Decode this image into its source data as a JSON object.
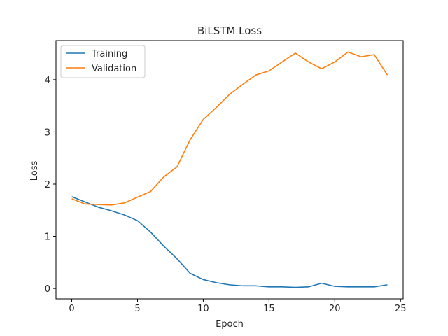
{
  "chart_data": {
    "type": "line",
    "title": "BiLSTM Loss",
    "xlabel": "Epoch",
    "ylabel": "Loss",
    "xlim": [
      -1.2,
      25.2
    ],
    "ylim": [
      -0.2,
      4.75
    ],
    "xticks": [
      0,
      5,
      10,
      15,
      20,
      25
    ],
    "yticks": [
      0,
      1,
      2,
      3,
      4
    ],
    "legend_position": "top-left",
    "x": [
      0,
      1,
      2,
      3,
      4,
      5,
      6,
      7,
      8,
      9,
      10,
      11,
      12,
      13,
      14,
      15,
      16,
      17,
      18,
      19,
      20,
      21,
      22,
      23,
      24
    ],
    "series": [
      {
        "name": "Training",
        "color": "#1f77b4",
        "values": [
          1.76,
          1.66,
          1.56,
          1.49,
          1.41,
          1.3,
          1.08,
          0.81,
          0.57,
          0.29,
          0.17,
          0.11,
          0.07,
          0.05,
          0.05,
          0.03,
          0.03,
          0.02,
          0.03,
          0.1,
          0.04,
          0.03,
          0.03,
          0.03,
          0.07
        ]
      },
      {
        "name": "Validation",
        "color": "#ff7f0e",
        "values": [
          1.72,
          1.62,
          1.61,
          1.6,
          1.64,
          1.75,
          1.86,
          2.14,
          2.33,
          2.85,
          3.24,
          3.47,
          3.72,
          3.91,
          4.09,
          4.17,
          4.34,
          4.51,
          4.34,
          4.21,
          4.34,
          4.53,
          4.44,
          4.48,
          4.09
        ]
      }
    ]
  }
}
